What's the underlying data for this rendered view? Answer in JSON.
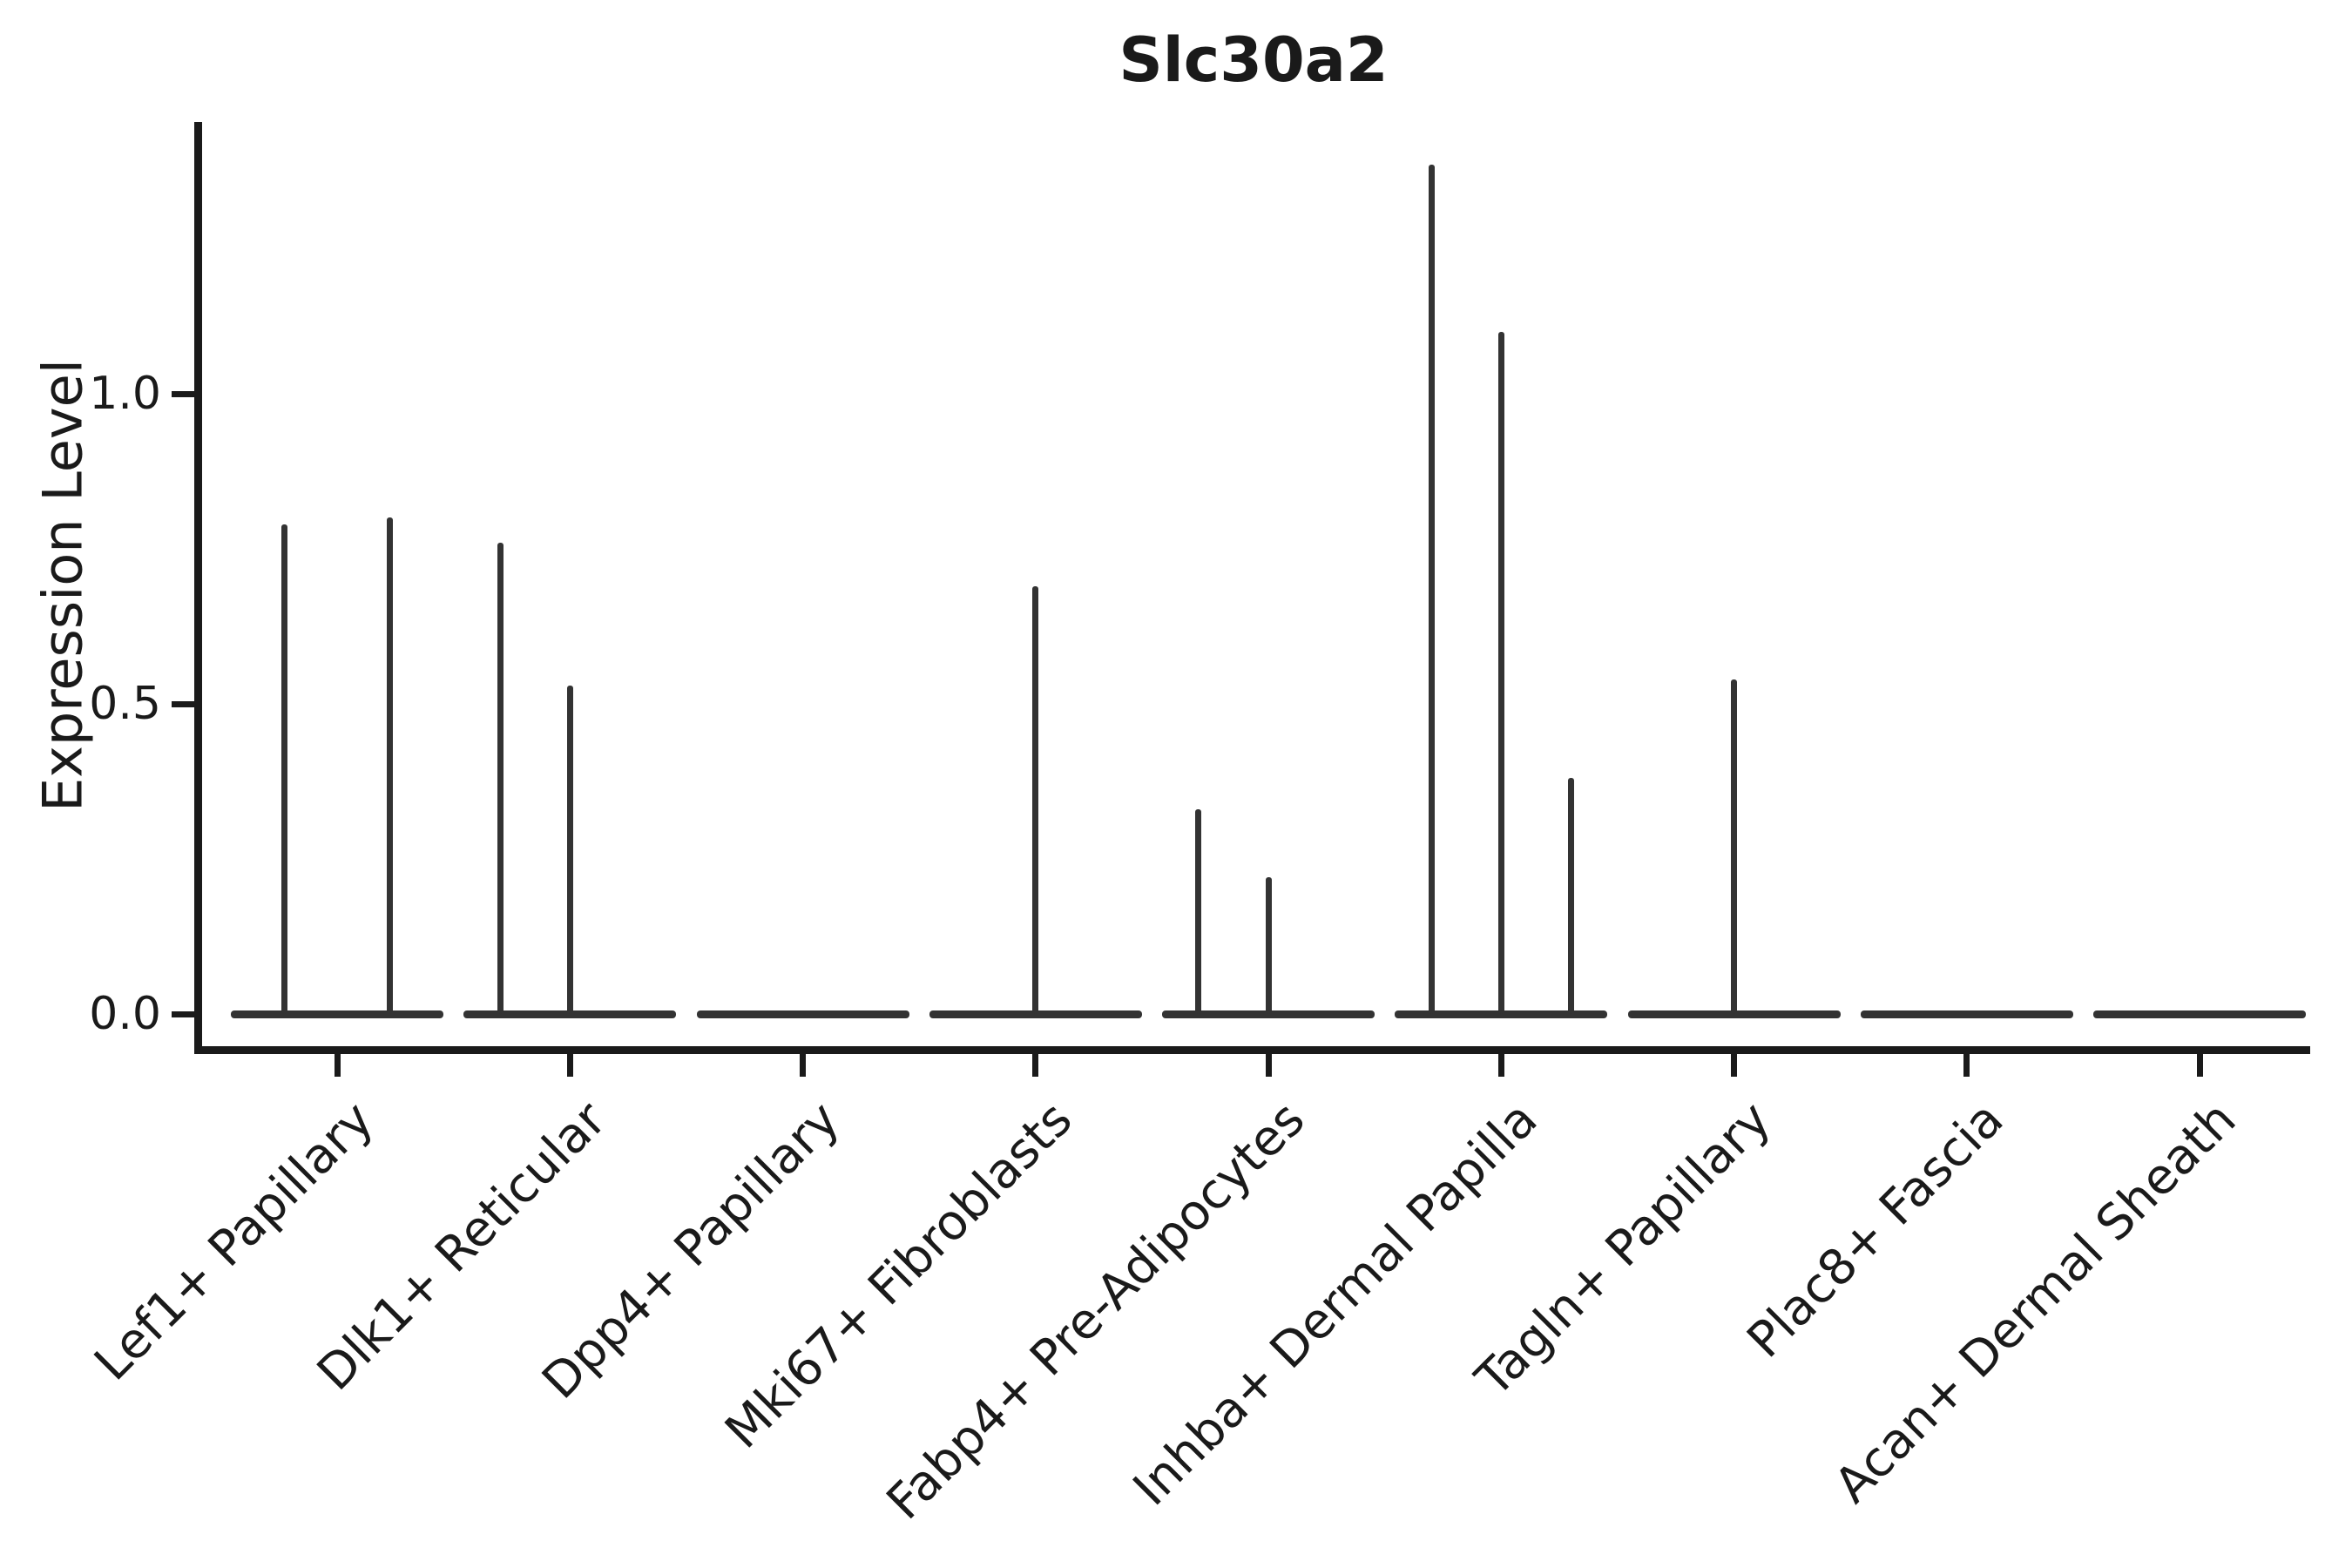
{
  "chart_data": {
    "type": "violin",
    "title": "Slc30a2",
    "ylabel": "Expression Level",
    "xlabel": "",
    "yticks": [
      "0.0",
      "0.5",
      "1.0"
    ],
    "ytick_values": [
      0.0,
      0.5,
      1.0
    ],
    "ylim": [
      -0.06,
      1.44
    ],
    "grid": false,
    "legend": "none",
    "categories": [
      "Lef1+ Papillary",
      "Dlk1+ Reticular",
      "Dpp4+ Papillary",
      "Mki67+ Fibroblasts",
      "Fabp4+ Pre-Adipocytes",
      "Inhba+ Dermal Papilla",
      "Tagln+ Papillary",
      "Plac8+ Fascia",
      "Acan+ Dermal Sheath"
    ],
    "series": [
      {
        "category": "Lef1+ Papillary",
        "violins": [
          {
            "offset": -0.228,
            "max": 0.79
          },
          {
            "offset": 0.228,
            "max": 0.8
          }
        ]
      },
      {
        "category": "Dlk1+ Reticular",
        "violins": [
          {
            "offset": -0.3,
            "max": 0.76
          },
          {
            "offset": 0.0,
            "max": 0.53
          }
        ]
      },
      {
        "category": "Dpp4+ Papillary",
        "violins": []
      },
      {
        "category": "Mki67+ Fibroblasts",
        "violins": [
          {
            "offset": 0.0,
            "max": 0.69
          }
        ]
      },
      {
        "category": "Fabp4+ Pre-Adipocytes",
        "violins": [
          {
            "offset": -0.3,
            "max": 0.33
          },
          {
            "offset": 0.0,
            "max": 0.22
          }
        ]
      },
      {
        "category": "Inhba+ Dermal Papilla",
        "violins": [
          {
            "offset": -0.3,
            "max": 1.37
          },
          {
            "offset": 0.0,
            "max": 1.1
          },
          {
            "offset": 0.3,
            "max": 0.38
          }
        ]
      },
      {
        "category": "Tagln+ Papillary",
        "violins": [
          {
            "offset": 0.0,
            "max": 0.54
          }
        ]
      },
      {
        "category": "Plac8+ Fascia",
        "violins": []
      },
      {
        "category": "Acan+ Dermal Sheath",
        "violins": []
      }
    ],
    "colors": {
      "violin_line": "#333333",
      "spine": "#1a1a1a",
      "text": "#1a1a1a",
      "background": "#ffffff"
    }
  }
}
